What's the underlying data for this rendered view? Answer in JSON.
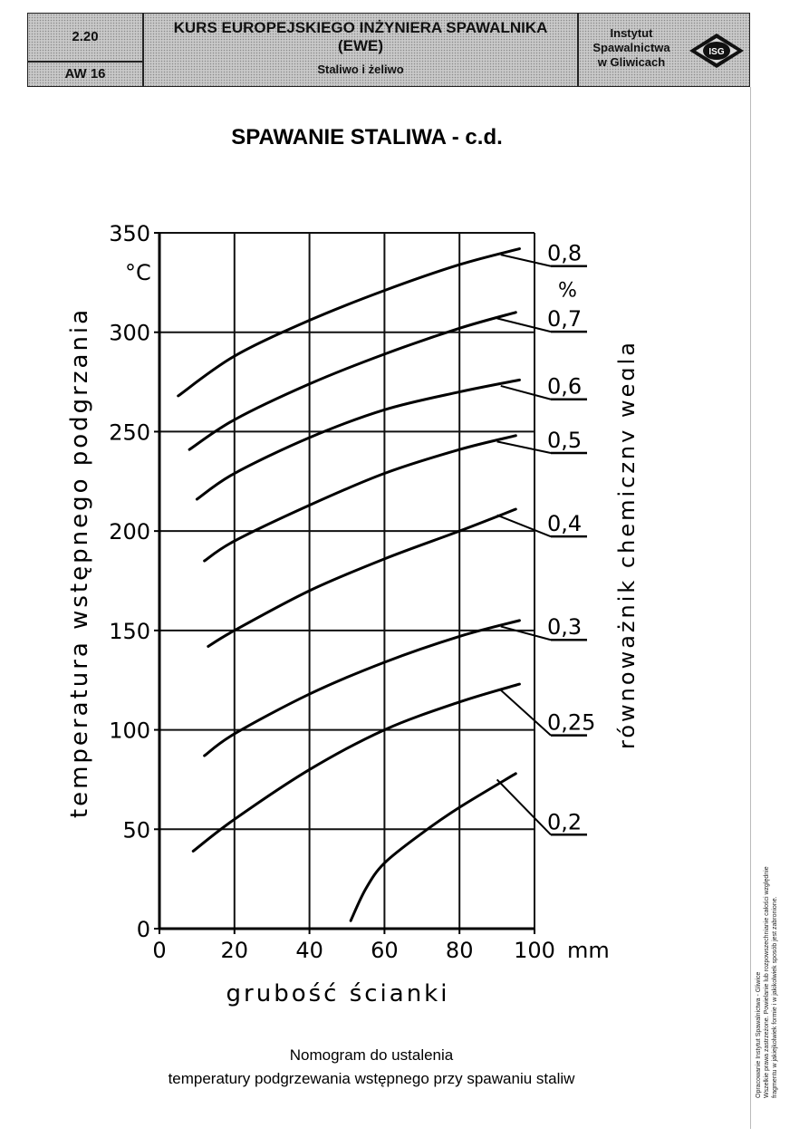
{
  "header": {
    "section": "2.20",
    "code": "AW 16",
    "course_title": "KURS EUROPEJSKIEGO INŻYNIERA SPAWALNIKA",
    "course_sub": "(EWE)",
    "topic": "Staliwo i żeliwo",
    "institute_line1": "Instytut",
    "institute_line2": "Spawalnictwa",
    "institute_line3": "w Gliwicach",
    "logo_text": "ISG"
  },
  "page_title": "SPAWANIE  STALIWA - c.d.",
  "caption": {
    "line1": "Nomogram do ustalenia",
    "line2": "temperatury podgrzewania wstępnego przy spawaniu staliw"
  },
  "side_note": {
    "line1": "Opracowanie Instytut Spawalnictwa - Gliwice",
    "line2": "Wszelkie prawa zastrzeżone. Powielanie lub rozpowszechnianie całości względnie",
    "line3": "fragmentu w jakiejkolwiek formie i w jakikolwiek sposób jest zabronione."
  },
  "chart_data": {
    "type": "line",
    "title": "",
    "xlabel": "grubość ścianki",
    "ylabel": "temperatura wstępnego podgrzania",
    "x_unit": "mm",
    "y_unit": "°C",
    "right_label": "równoważnik chemiczny węgla",
    "series_unit": "%",
    "xlim": [
      0,
      100
    ],
    "ylim": [
      0,
      350
    ],
    "x_ticks": [
      0,
      20,
      40,
      60,
      80,
      100
    ],
    "y_ticks": [
      0,
      50,
      100,
      150,
      200,
      250,
      300,
      350
    ],
    "grid": true,
    "series": [
      {
        "name": "0,8",
        "x": [
          5,
          20,
          40,
          60,
          80,
          96
        ],
        "y": [
          268,
          288,
          306,
          321,
          334,
          342
        ]
      },
      {
        "name": "0,7",
        "x": [
          8,
          20,
          40,
          60,
          80,
          95
        ],
        "y": [
          241,
          256,
          274,
          289,
          302,
          310
        ]
      },
      {
        "name": "0,6",
        "x": [
          10,
          20,
          40,
          60,
          80,
          96
        ],
        "y": [
          216,
          229,
          247,
          261,
          270,
          276
        ]
      },
      {
        "name": "0,5",
        "x": [
          12,
          20,
          40,
          60,
          80,
          95
        ],
        "y": [
          185,
          195,
          213,
          229,
          241,
          248
        ]
      },
      {
        "name": "0,4",
        "x": [
          13,
          20,
          40,
          60,
          80,
          95
        ],
        "y": [
          142,
          150,
          170,
          186,
          200,
          211
        ]
      },
      {
        "name": "0,3",
        "x": [
          12,
          20,
          40,
          60,
          80,
          96
        ],
        "y": [
          87,
          98,
          118,
          134,
          147,
          155
        ]
      },
      {
        "name": "0,25",
        "x": [
          9,
          20,
          40,
          60,
          80,
          96
        ],
        "y": [
          39,
          55,
          80,
          100,
          114,
          123
        ]
      },
      {
        "name": "0,2",
        "x": [
          51,
          55,
          60,
          70,
          80,
          95
        ],
        "y": [
          4,
          20,
          33,
          48,
          61,
          78
        ]
      }
    ]
  }
}
